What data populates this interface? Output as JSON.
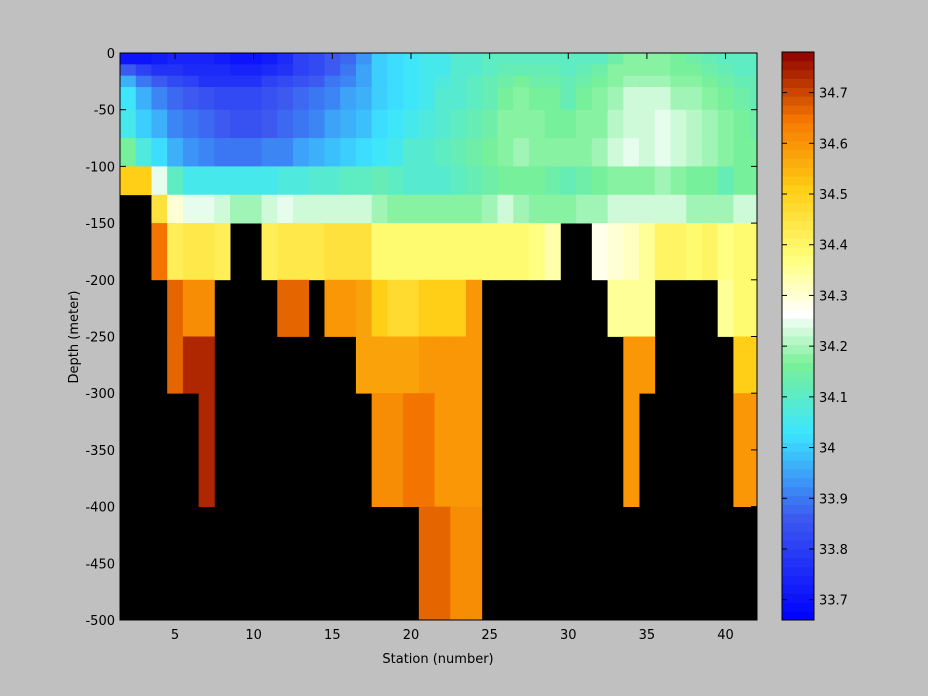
{
  "chart_data": {
    "type": "heatmap",
    "xlabel": "Station (number)",
    "ylabel": "Depth (meter)",
    "xlim": [
      1.5,
      42
    ],
    "ylim": [
      -500,
      0
    ],
    "x_ticks": [
      5,
      10,
      15,
      20,
      25,
      30,
      35,
      40
    ],
    "y_ticks": [
      0,
      -50,
      -100,
      -150,
      -200,
      -250,
      -300,
      -350,
      -400,
      -450,
      -500
    ],
    "colorbar": {
      "clim": [
        33.66,
        34.78
      ],
      "ticks": [
        33.7,
        33.8,
        33.9,
        34,
        34.1,
        34.2,
        34.3,
        34.4,
        34.5,
        34.6,
        34.7
      ],
      "levels": 64,
      "colormap": "jet-with-white-center"
    },
    "nan_color": "#000000",
    "stations": [
      2,
      3,
      4,
      5,
      6,
      7,
      8,
      9,
      10,
      11,
      12,
      13,
      14,
      15,
      16,
      17,
      18,
      19,
      20,
      21,
      22,
      23,
      24,
      25,
      26,
      27,
      28,
      29,
      30,
      31,
      32,
      33,
      34,
      35,
      36,
      37,
      38,
      39,
      40,
      41,
      42
    ],
    "row_depths": [
      {
        "top": 0,
        "bottom": -10
      },
      {
        "top": -10,
        "bottom": -20
      },
      {
        "top": -20,
        "bottom": -30
      },
      {
        "top": -30,
        "bottom": -50
      },
      {
        "top": -50,
        "bottom": -75
      },
      {
        "top": -75,
        "bottom": -100
      },
      {
        "top": -100,
        "bottom": -125
      },
      {
        "top": -125,
        "bottom": -150
      },
      {
        "top": -150,
        "bottom": -200
      },
      {
        "top": -200,
        "bottom": -250
      },
      {
        "top": -250,
        "bottom": -300
      },
      {
        "top": -300,
        "bottom": -400
      },
      {
        "top": -400,
        "bottom": -500
      }
    ],
    "values": [
      [
        33.7,
        33.7,
        33.72,
        33.74,
        33.74,
        33.74,
        33.72,
        33.7,
        33.7,
        33.72,
        33.76,
        33.8,
        33.83,
        33.86,
        33.88,
        33.93,
        34.0,
        34.02,
        34.04,
        34.05,
        34.06,
        34.08,
        34.08,
        34.1,
        34.1,
        34.1,
        34.1,
        34.1,
        34.1,
        34.1,
        34.1,
        34.14,
        34.17,
        34.17,
        34.18,
        34.15,
        34.14,
        34.12,
        34.1,
        34.1,
        34.1
      ],
      [
        33.86,
        33.8,
        33.78,
        33.77,
        33.76,
        33.76,
        33.76,
        33.74,
        33.74,
        33.76,
        33.78,
        33.8,
        33.83,
        33.86,
        33.9,
        33.95,
        34.0,
        34.02,
        34.04,
        34.05,
        34.06,
        34.08,
        34.09,
        34.1,
        34.12,
        34.13,
        34.12,
        34.12,
        34.1,
        34.12,
        34.14,
        34.17,
        34.18,
        34.18,
        34.18,
        34.16,
        34.16,
        34.14,
        34.12,
        34.1,
        34.1
      ],
      [
        33.97,
        33.9,
        33.86,
        33.82,
        33.8,
        33.78,
        33.78,
        33.78,
        33.78,
        33.8,
        33.82,
        33.84,
        33.86,
        33.9,
        33.92,
        33.95,
        34.0,
        34.02,
        34.04,
        34.05,
        34.07,
        34.09,
        34.1,
        34.12,
        34.14,
        34.15,
        34.14,
        34.14,
        34.12,
        34.14,
        34.16,
        34.18,
        34.2,
        34.2,
        34.2,
        34.18,
        34.18,
        34.16,
        34.14,
        34.12,
        34.12
      ],
      [
        34.04,
        33.97,
        33.92,
        33.88,
        33.86,
        33.84,
        33.83,
        33.82,
        33.82,
        33.84,
        33.86,
        33.88,
        33.9,
        33.92,
        33.94,
        33.96,
        34.0,
        34.02,
        34.04,
        34.06,
        34.08,
        34.09,
        34.1,
        34.12,
        34.15,
        34.17,
        34.16,
        34.15,
        34.13,
        34.15,
        34.17,
        34.2,
        34.22,
        34.22,
        34.22,
        34.2,
        34.2,
        34.18,
        34.16,
        34.14,
        34.12
      ],
      [
        34.06,
        34.0,
        33.96,
        33.92,
        33.9,
        33.88,
        33.86,
        33.85,
        33.84,
        33.86,
        33.88,
        33.9,
        33.92,
        33.94,
        33.96,
        33.98,
        34.01,
        34.03,
        34.05,
        34.07,
        34.09,
        34.1,
        34.12,
        34.14,
        34.17,
        34.18,
        34.17,
        34.16,
        34.15,
        34.17,
        34.18,
        34.21,
        34.23,
        34.23,
        34.24,
        34.22,
        34.21,
        34.19,
        34.17,
        34.15,
        34.14
      ],
      [
        34.16,
        34.07,
        34.02,
        33.96,
        33.93,
        33.91,
        33.9,
        33.89,
        33.89,
        33.91,
        33.92,
        33.94,
        33.96,
        33.98,
        34.0,
        34.02,
        34.04,
        34.06,
        34.08,
        34.09,
        34.1,
        34.12,
        34.14,
        34.16,
        34.18,
        34.19,
        34.18,
        34.17,
        34.17,
        34.18,
        34.2,
        34.22,
        34.24,
        34.23,
        34.24,
        34.22,
        34.21,
        34.2,
        34.18,
        34.16,
        34.15
      ],
      [
        34.5,
        34.5,
        34.25,
        34.1,
        34.05,
        34.05,
        34.05,
        34.05,
        34.06,
        34.06,
        34.07,
        34.07,
        34.08,
        34.09,
        34.1,
        34.11,
        34.12,
        34.1,
        34.08,
        34.08,
        34.08,
        34.1,
        34.12,
        34.14,
        34.15,
        34.16,
        34.15,
        34.14,
        34.13,
        34.14,
        34.16,
        34.17,
        34.18,
        34.18,
        34.19,
        34.17,
        34.16,
        34.15,
        34.13,
        34.16,
        34.16
      ],
      [
        null,
        null,
        34.45,
        34.3,
        34.24,
        34.24,
        34.22,
        34.2,
        34.2,
        34.23,
        34.24,
        34.22,
        34.22,
        34.22,
        34.22,
        34.22,
        34.2,
        34.18,
        34.18,
        34.18,
        34.17,
        34.17,
        34.18,
        34.2,
        34.22,
        34.2,
        34.18,
        34.18,
        34.18,
        34.19,
        34.2,
        34.22,
        34.22,
        34.22,
        34.22,
        34.22,
        34.2,
        34.2,
        34.2,
        34.22,
        34.22
      ],
      [
        null,
        null,
        34.65,
        34.42,
        34.44,
        34.44,
        34.42,
        null,
        null,
        34.42,
        34.44,
        34.44,
        34.44,
        34.46,
        34.46,
        34.45,
        34.38,
        34.38,
        34.38,
        34.38,
        34.38,
        34.38,
        34.38,
        34.38,
        34.38,
        34.38,
        34.36,
        34.34,
        null,
        null,
        34.28,
        34.3,
        34.32,
        34.35,
        34.4,
        34.4,
        34.38,
        34.4,
        34.36,
        34.38,
        34.38
      ],
      [
        null,
        null,
        null,
        34.66,
        34.62,
        34.62,
        null,
        null,
        null,
        null,
        34.66,
        34.66,
        null,
        34.6,
        34.6,
        34.58,
        34.5,
        34.48,
        34.48,
        34.5,
        34.5,
        34.5,
        34.6,
        null,
        null,
        null,
        null,
        null,
        null,
        null,
        null,
        34.35,
        34.35,
        34.35,
        null,
        null,
        null,
        null,
        34.35,
        34.38,
        34.38
      ],
      [
        null,
        null,
        null,
        34.67,
        34.74,
        34.74,
        null,
        null,
        null,
        null,
        null,
        null,
        null,
        null,
        null,
        34.58,
        34.58,
        34.58,
        34.58,
        34.6,
        34.6,
        34.6,
        34.6,
        null,
        null,
        null,
        null,
        null,
        null,
        null,
        null,
        null,
        34.6,
        34.6,
        null,
        null,
        null,
        null,
        null,
        34.5,
        34.5
      ],
      [
        null,
        null,
        null,
        null,
        null,
        34.74,
        null,
        null,
        null,
        null,
        null,
        null,
        null,
        null,
        null,
        null,
        34.62,
        34.62,
        34.64,
        34.64,
        34.6,
        34.6,
        34.6,
        null,
        null,
        null,
        null,
        null,
        null,
        null,
        null,
        null,
        34.6,
        null,
        null,
        null,
        null,
        null,
        null,
        34.6,
        34.6
      ],
      [
        null,
        null,
        null,
        null,
        null,
        null,
        null,
        null,
        null,
        null,
        null,
        null,
        null,
        null,
        null,
        null,
        null,
        null,
        null,
        34.66,
        34.66,
        34.62,
        34.62,
        null,
        null,
        null,
        null,
        null,
        null,
        null,
        null,
        null,
        null,
        null,
        null,
        null,
        null,
        null,
        null,
        null,
        null
      ]
    ]
  }
}
